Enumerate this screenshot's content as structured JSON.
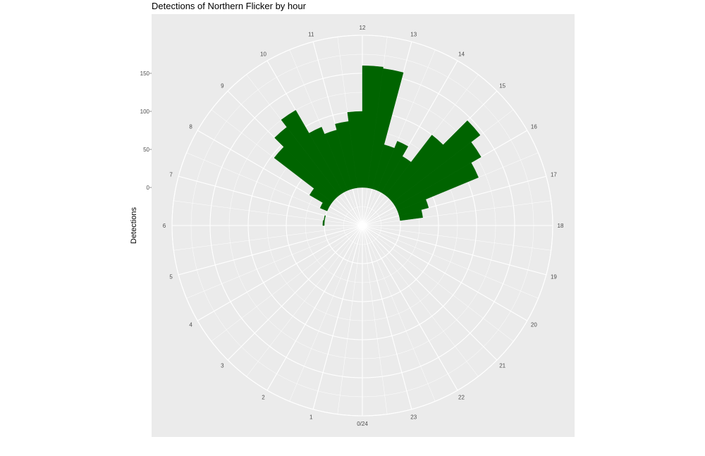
{
  "chart_data": {
    "type": "bar",
    "coord": "polar",
    "title": "Detections of Northern Flicker by hour",
    "xlabel": "",
    "ylabel": "Detections",
    "hour_labels": [
      "0/24",
      "1",
      "2",
      "3",
      "4",
      "5",
      "6",
      "7",
      "8",
      "9",
      "10",
      "11",
      "12",
      "13",
      "14",
      "15",
      "16",
      "17",
      "18",
      "19",
      "20",
      "21",
      "22",
      "23"
    ],
    "y_ticks": [
      "0",
      "50",
      "100",
      "150"
    ],
    "y_tick_values": [
      0,
      50,
      100,
      150
    ],
    "ylim": [
      -50,
      200
    ],
    "series": [
      {
        "x": [
          5.75,
          6.25,
          6.75,
          7.25,
          7.75,
          8.25,
          8.75,
          9.25,
          9.75,
          10.25,
          10.75,
          11.25,
          11.75,
          12.25,
          12.75,
          13.25,
          13.75,
          14.25,
          14.75,
          15.25,
          15.75,
          16.25,
          16.75,
          17.25,
          17.75
        ],
        "values": [
          0,
          2,
          1,
          0,
          10,
          30,
          96,
          113,
          125,
          90,
          80,
          88,
          100,
          160,
          158,
          60,
          70,
          55,
          100,
          145,
          130,
          115,
          40,
          30,
          0
        ]
      }
    ],
    "colors": {
      "bar": "#006400",
      "panel": "#ebebeb",
      "grid": "#ffffff"
    },
    "grid": true,
    "legend": "none"
  }
}
